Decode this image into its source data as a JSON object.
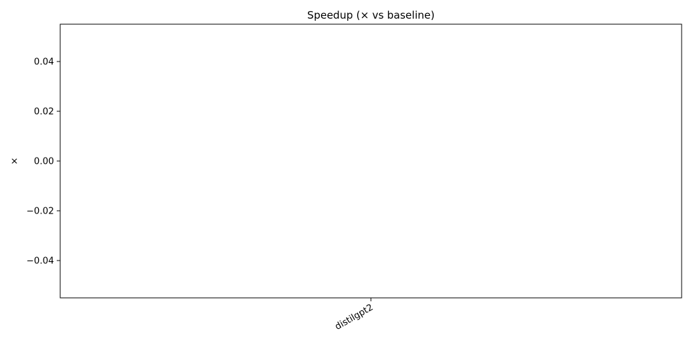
{
  "chart_data": {
    "type": "bar",
    "title": "Speedup (× vs baseline)",
    "xlabel": "",
    "ylabel": "×",
    "categories": [
      "distilgpt2"
    ],
    "series": [
      {
        "values": [
          0
        ]
      }
    ],
    "ylim": [
      -0.055,
      0.055
    ],
    "yticks": [
      {
        "value": 0.04,
        "label": "0.04"
      },
      {
        "value": 0.02,
        "label": "0.02"
      },
      {
        "value": 0.0,
        "label": "0.00"
      },
      {
        "value": -0.02,
        "label": "−0.02"
      },
      {
        "value": -0.04,
        "label": "−0.04"
      }
    ],
    "grid": false,
    "legend": "none",
    "colors": {
      "axis": "#000000",
      "bar": "#1f77b4",
      "background": "#ffffff"
    }
  }
}
